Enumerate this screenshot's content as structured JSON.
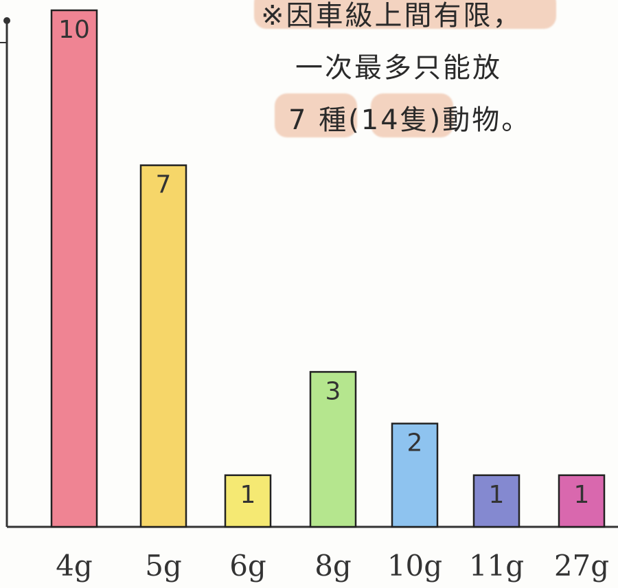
{
  "chart_data": {
    "type": "bar",
    "categories": [
      "4g",
      "5g",
      "6g",
      "8g",
      "10g",
      "11g",
      "27g"
    ],
    "values": [
      10,
      7,
      1,
      3,
      2,
      1,
      1
    ],
    "bar_colors": [
      "#ec6f80",
      "#f4cf4f",
      "#f3e55b",
      "#a8e27a",
      "#7ab8ec",
      "#6f74c8",
      "#d24ea0"
    ],
    "ylim": [
      0,
      10
    ],
    "grid": false,
    "title": "",
    "xlabel": "",
    "ylabel": ""
  },
  "annotation": {
    "lines": [
      "※因車級上間有限，",
      "一次最多只能放",
      "7 種(14隻)動物。"
    ]
  }
}
